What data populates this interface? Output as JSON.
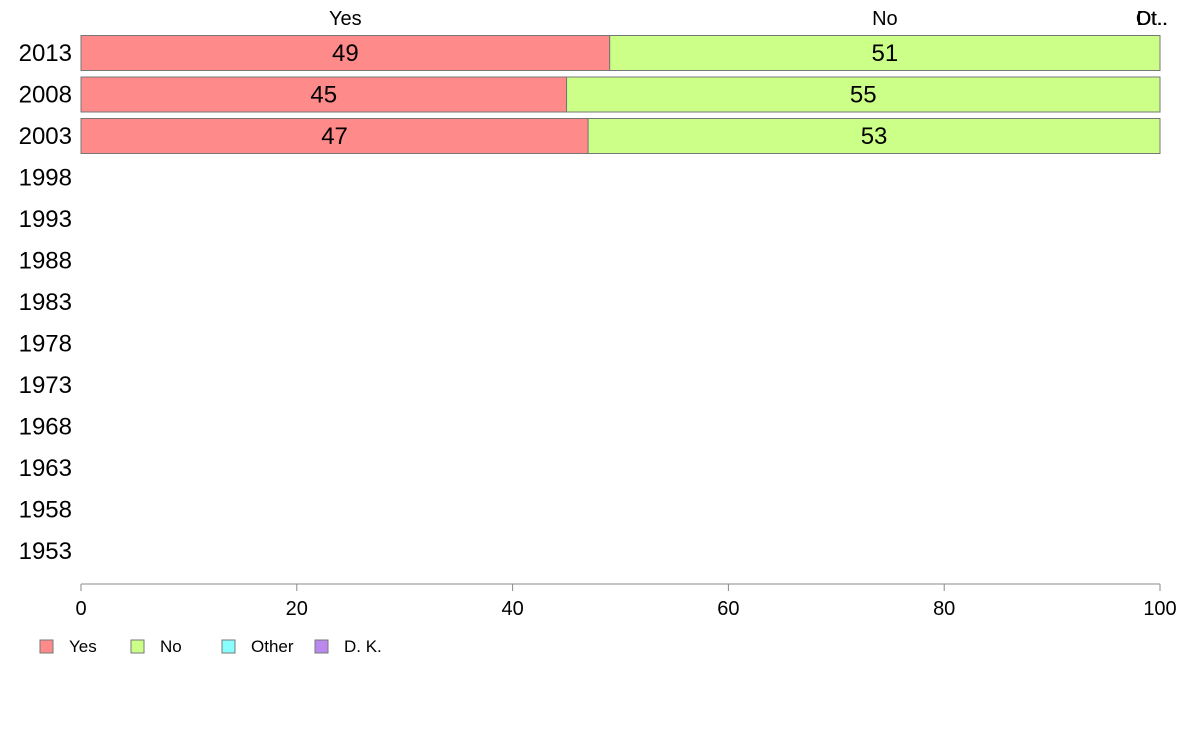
{
  "chart_data": {
    "type": "bar",
    "orientation": "horizontal",
    "stacked": true,
    "categories": [
      "2013",
      "2008",
      "2003",
      "1998",
      "1993",
      "1988",
      "1983",
      "1978",
      "1973",
      "1968",
      "1963",
      "1958",
      "1953"
    ],
    "series": [
      {
        "name": "Yes",
        "values": [
          49,
          45,
          47,
          null,
          null,
          null,
          null,
          null,
          null,
          null,
          null,
          null,
          null
        ],
        "color": "#ff8a8a"
      },
      {
        "name": "No",
        "values": [
          51,
          55,
          53,
          null,
          null,
          null,
          null,
          null,
          null,
          null,
          null,
          null,
          null
        ],
        "color": "#ccff88"
      },
      {
        "name": "Other",
        "values": [
          0,
          0,
          0,
          null,
          null,
          null,
          null,
          null,
          null,
          null,
          null,
          null,
          null
        ],
        "color": "#88ffff"
      },
      {
        "name": "D. K.",
        "values": [
          0,
          0,
          0,
          null,
          null,
          null,
          null,
          null,
          null,
          null,
          null,
          null,
          null
        ],
        "color": "#bb88ee"
      }
    ],
    "data_labels": [
      [
        "49",
        "51"
      ],
      [
        "45",
        "55"
      ],
      [
        "47",
        "53"
      ]
    ],
    "top_labels": [
      "Yes",
      "No",
      "Dt..",
      "Ot.."
    ],
    "xlim": [
      0,
      100
    ],
    "xticks": [
      "0",
      "20",
      "40",
      "60",
      "80",
      "100"
    ],
    "legend_position": "bottom-left",
    "grid": false,
    "title": "",
    "xlabel": "",
    "ylabel": ""
  }
}
